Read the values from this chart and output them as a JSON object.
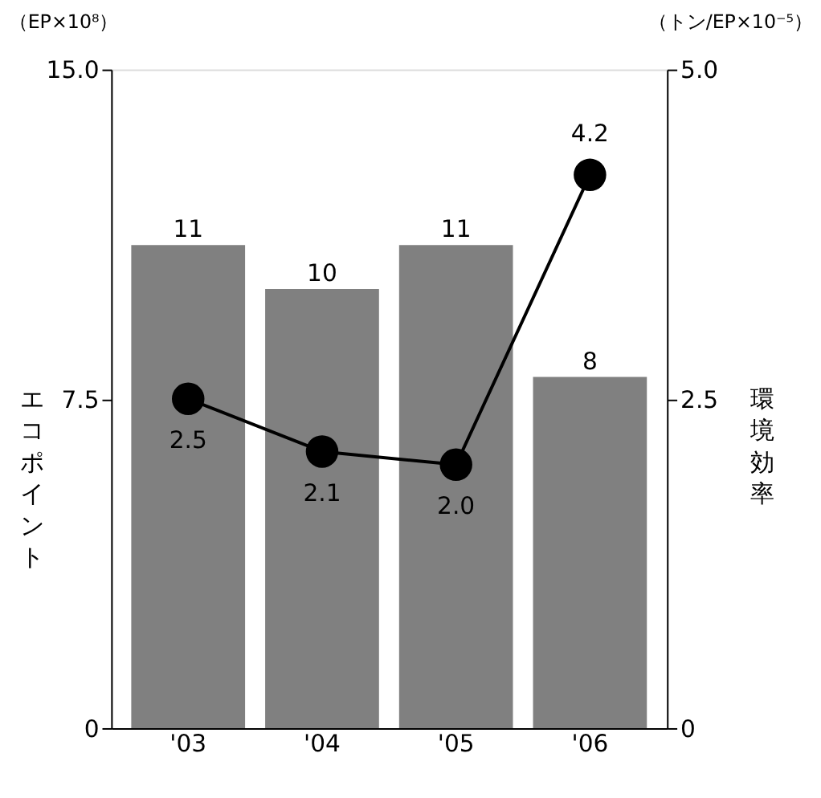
{
  "chart_data": {
    "type": "bar",
    "categories": [
      "'03",
      "'04",
      "'05",
      "'06"
    ],
    "ylabel": "エコポイント",
    "y2label": "環境効率",
    "annotations": [
      "（EP×10⁸）",
      "（トン/EP×10⁻⁵）"
    ],
    "series": [
      {
        "color": "#808080",
        "values": [
          11,
          10,
          11,
          8
        ]
      },
      {
        "type": "line",
        "axis": "y2",
        "color": "#000000",
        "values": [
          2.5,
          2.1,
          2.0,
          4.2
        ],
        "value_labels": [
          "2.5",
          "2.1",
          "2.0",
          "4.2"
        ],
        "marker": "circle"
      }
    ],
    "ylim": [
      0,
      15
    ],
    "yticks": [
      0,
      7.5,
      {
        "value": 15,
        "label": "15.0"
      }
    ],
    "y2lim": [
      0,
      5
    ],
    "y2ticks": [
      0,
      2.5,
      {
        "value": 5,
        "label": "5.0"
      }
    ],
    "data_labels": true,
    "grid": false
  }
}
